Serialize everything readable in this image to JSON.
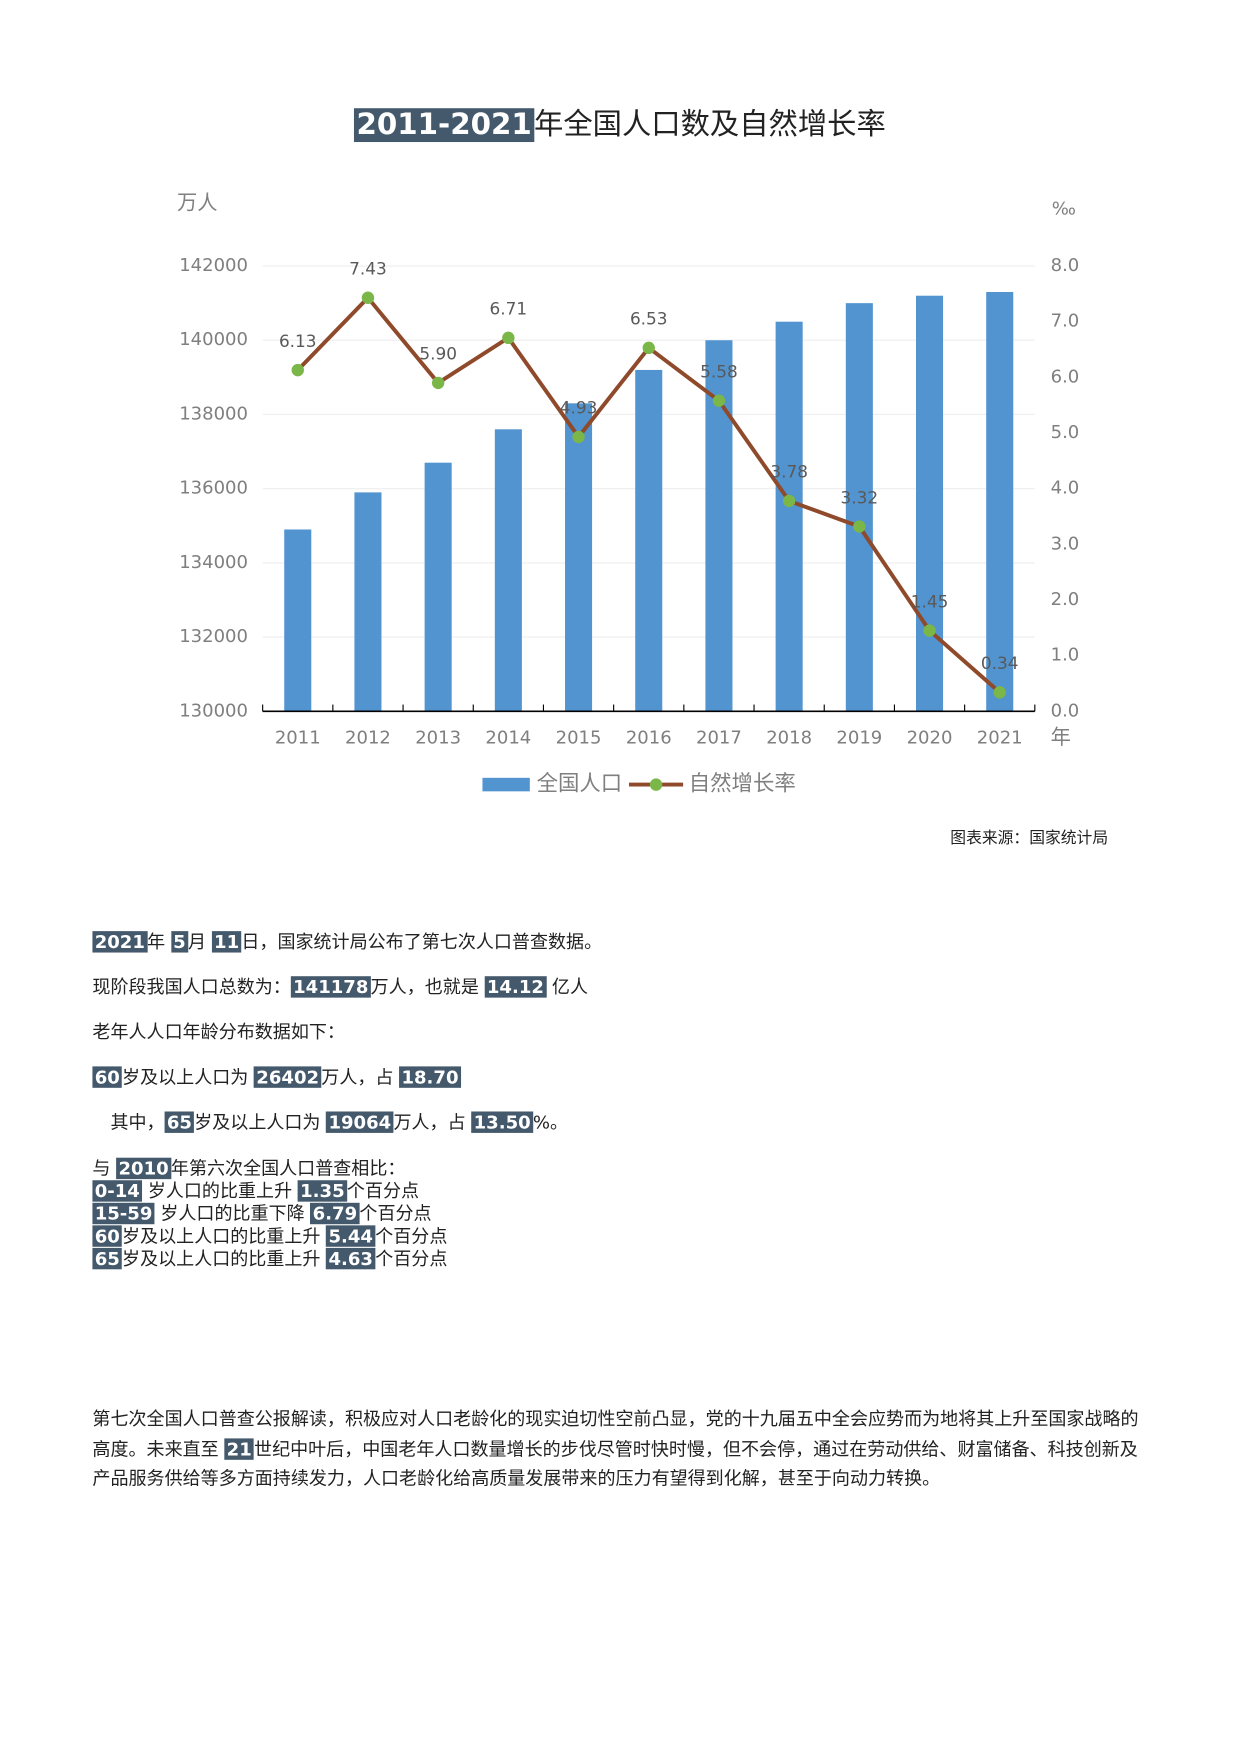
{
  "header": [
    {
      "text": "2011-2021",
      "highlight": true
    },
    {
      "text": "年全国人口数及自然增长率"
    }
  ],
  "chart_data": {
    "type": "bar-line",
    "y_unit": "万人",
    "y2_unit": "‰",
    "x_unit": "年",
    "categories": [
      "2011",
      "2012",
      "2013",
      "2014",
      "2015",
      "2016",
      "2017",
      "2018",
      "2019",
      "2020",
      "2021"
    ],
    "series": [
      {
        "name": "全国人口",
        "type": "bar",
        "color": "#5294cf",
        "values": [
          134900,
          135900,
          136700,
          137600,
          138300,
          139200,
          140000,
          140500,
          141000,
          141200,
          141300
        ]
      },
      {
        "name": "自然增长率",
        "type": "line",
        "axis": "y2",
        "color": "#8e4a2a",
        "marker_color": "#7ab648",
        "values": [
          6.13,
          7.43,
          5.9,
          6.71,
          4.93,
          6.53,
          5.58,
          3.78,
          3.32,
          1.45,
          0.34
        ],
        "value_labels": [
          "6.13",
          "7.43",
          "5.90",
          "6.71",
          "4.93",
          "6.53",
          "5.58",
          "3.78",
          "3.32",
          "1.45",
          "0.34"
        ]
      }
    ],
    "ylim": [
      130000,
      142000
    ],
    "yticks": [
      130000,
      132000,
      134000,
      136000,
      138000,
      140000,
      142000
    ],
    "y2lim": [
      0,
      8
    ],
    "y2ticks": [
      {
        "value": 0,
        "label": "0.0"
      },
      {
        "value": 1,
        "label": "1.0"
      },
      {
        "value": 2,
        "label": "2.0"
      },
      {
        "value": 3,
        "label": "3.0"
      },
      {
        "value": 4,
        "label": "4.0"
      },
      {
        "value": 5,
        "label": "5.0"
      },
      {
        "value": 6,
        "label": "6.0"
      },
      {
        "value": 7,
        "label": "7.0"
      },
      {
        "value": 8,
        "label": "8.0"
      }
    ],
    "grid": true,
    "legend": "bottom"
  },
  "source": "图表来源：国家统计局",
  "lines": [
    [
      {
        "text": "2021",
        "highlight": true
      },
      {
        "text": "年 "
      },
      {
        "text": "5",
        "highlight": true
      },
      {
        "text": "月 "
      },
      {
        "text": "11",
        "highlight": true
      },
      {
        "text": "日，国家统计局公布了第七次人口普查数据。"
      }
    ],
    [
      {
        "text": "现阶段我国人口总数为："
      },
      {
        "text": "141178",
        "highlight": true
      },
      {
        "text": "万人，也就是 "
      },
      {
        "text": "14.12",
        "highlight": true
      },
      {
        "text": " 亿人"
      }
    ],
    [
      {
        "text": "老年人人口年龄分布数据如下："
      }
    ],
    [
      {
        "text": "60",
        "highlight": true
      },
      {
        "text": "岁及以上人口为 "
      },
      {
        "text": "26402",
        "highlight": true
      },
      {
        "text": "万人，占 "
      },
      {
        "text": "18.70",
        "highlight": true
      }
    ],
    [
      {
        "text": "其中，"
      },
      {
        "text": "65",
        "highlight": true
      },
      {
        "text": "岁及以上人口为 "
      },
      {
        "text": "19064",
        "highlight": true
      },
      {
        "text": "万人，占 "
      },
      {
        "text": "13.50",
        "highlight": true
      },
      {
        "text": "%。"
      }
    ],
    [
      {
        "text": "与 "
      },
      {
        "text": "2010",
        "highlight": true
      },
      {
        "text": "年第六次全国人口普查相比："
      }
    ],
    [
      {
        "text": "0-14",
        "highlight": true
      },
      {
        "text": " 岁人口的比重上升 "
      },
      {
        "text": "1.35",
        "highlight": true
      },
      {
        "text": "个百分点"
      }
    ],
    [
      {
        "text": "15-59",
        "highlight": true
      },
      {
        "text": " 岁人口的比重下降 "
      },
      {
        "text": "6.79",
        "highlight": true
      },
      {
        "text": "个百分点"
      }
    ],
    [
      {
        "text": "60",
        "highlight": true
      },
      {
        "text": "岁及以上人口的比重上升 "
      },
      {
        "text": "5.44",
        "highlight": true
      },
      {
        "text": "个百分点"
      }
    ],
    [
      {
        "text": "65",
        "highlight": true
      },
      {
        "text": "岁及以上人口的比重上升 "
      },
      {
        "text": "4.63",
        "highlight": true
      },
      {
        "text": "个百分点"
      }
    ]
  ],
  "paragraph": [
    {
      "text": "第七次全国人口普查公报解读，积极应对人口老龄化的现实迫切性空前凸显，党的十九届五中全会应势而为地将其上升至国家战略的高度。未来直至 "
    },
    {
      "text": "21",
      "highlight": true
    },
    {
      "text": "世纪中叶后，中国老年人口数量增长的步伐尽管时快时慢，但不会停，通过在劳动供给、财富储备、科技创新及产品服务供给等多方面持续发力，人口老龄化给高质量发展带来的压力有望得到化解，甚至于向动力转换。"
    }
  ]
}
